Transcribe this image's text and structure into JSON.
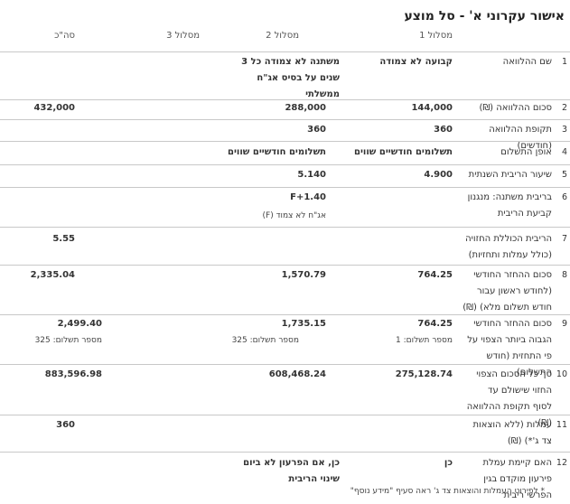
{
  "title": "אישור עקרוני א' - סל מוצע",
  "columns": [
    "מסלול 1",
    "מסלול 2",
    "מסלול 3",
    "סה\"כ"
  ],
  "rows": [
    {
      "num": "1",
      "label": "שם ההלוואה",
      "v1": "קבועה לא צמודה",
      "v2": "משתנה לא צמודה כל 3 שנים על בסיס אג\"ח ממשלתי",
      "v3": "",
      "total": ""
    },
    {
      "num": "2",
      "label": "סכום ההלוואה (₪)",
      "v1": "144,000",
      "v2": "288,000",
      "v3": "",
      "total": "432,000"
    },
    {
      "num": "3",
      "label": "תקופת ההלוואה (חודשים)",
      "v1": "360",
      "v2": "360",
      "v3": "",
      "total": ""
    },
    {
      "num": "4",
      "label": "אופן התשלום",
      "v1": "תשלומים חודשיים שווים",
      "v2": "תשלומים חודשיים שווים",
      "v3": "",
      "total": ""
    },
    {
      "num": "5",
      "label": "שיעור הריבית השנתית",
      "v1": "4.900",
      "v2": "5.140",
      "v3": "",
      "total": ""
    },
    {
      "num": "6",
      "label": "בריבית משתנה: מנגנון קביעת הריבית",
      "v1": "",
      "v2": "F+1.40",
      "v2_sub": "אג\"ח לא צמוד (F)",
      "v3": "",
      "total": ""
    },
    {
      "num": "7",
      "label": "הריבית הכוללת החזויה (כולל עמלות ותחזיות)",
      "v1": "",
      "v2": "",
      "v3": "",
      "total": "5.55"
    },
    {
      "num": "8",
      "label": "סכום ההחזר החודשי (לחודש ראשון עבור חודש תשלום מלא) (₪)",
      "v1": "764.25",
      "v2": "1,570.79",
      "v3": "",
      "total": "2,335.04"
    },
    {
      "num": "9",
      "label": "סכום ההחזר החודשי הגבוה ביותר הצפוי על פי התחזית (חודש התשלום)",
      "v1": "764.25",
      "v1_sub": "מספר תשלום: 1",
      "v2": "1,735.15",
      "v2_sub": "מספר תשלום: 325",
      "v3": "",
      "total": "2,499.40",
      "total_sub": "מספר תשלום: 325"
    },
    {
      "num": "10",
      "label": "סך כל הסכום הצפוי החזוי שישולם עד לסוף תקופת ההלוואה (₪)",
      "v1": "275,128.74",
      "v2": "608,468.24",
      "v3": "",
      "total": "883,596.98"
    },
    {
      "num": "11",
      "label": "עמלות (ללא הוצאות צד ג'*) (₪)",
      "v1": "",
      "v2": "",
      "v3": "",
      "total": "360"
    },
    {
      "num": "12",
      "label": "האם קיימת עמלת פירעון מוקדם בגין הפרשי ריבית",
      "v1": "כן",
      "v2": "כן, אם הפרעון לא ביום שינוי הריבית",
      "v3": "",
      "total": ""
    }
  ],
  "footer": "* לפירוט העמלות והוצאות צד ג' ראה סעיף \"מידע נוסף\""
}
